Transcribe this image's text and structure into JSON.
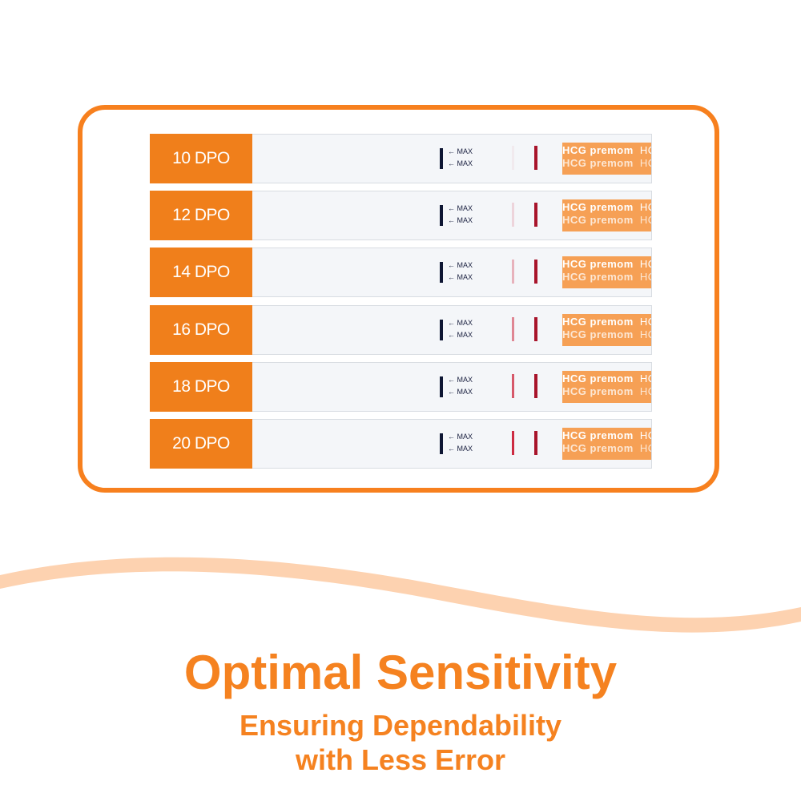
{
  "strip": {
    "max_label": "MAX",
    "brand_text": "premom",
    "hcg_text": "HCG"
  },
  "rows": [
    {
      "label": "10 DPO",
      "test_line_opacity": 0.05
    },
    {
      "label": "12 DPO",
      "test_line_opacity": 0.15
    },
    {
      "label": "14 DPO",
      "test_line_opacity": 0.3
    },
    {
      "label": "16 DPO",
      "test_line_opacity": 0.5
    },
    {
      "label": "18 DPO",
      "test_line_opacity": 0.7
    },
    {
      "label": "20 DPO",
      "test_line_opacity": 0.9
    }
  ],
  "headline": "Optimal Sensitivity",
  "subline1": "Ensuring Dependability",
  "subline2": "with Less Error",
  "colors": {
    "accent": "#f58220",
    "control_line": "#a8142b",
    "test_line": "#c9152e"
  }
}
